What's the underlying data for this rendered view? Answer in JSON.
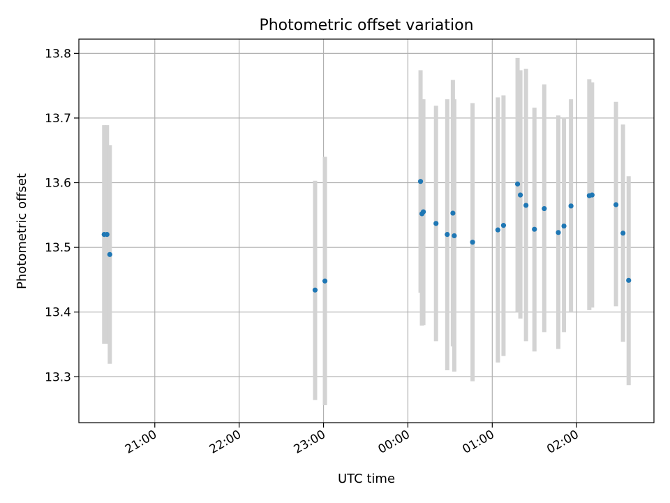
{
  "chart_data": {
    "type": "scatter",
    "title": "Photometric offset variation",
    "xlabel": "UTC time",
    "ylabel": "Photometric offset",
    "x_axis_type": "time",
    "x_tick_labels": [
      "21:00",
      "22:00",
      "23:00",
      "00:00",
      "01:00",
      "02:00"
    ],
    "y_tick_labels": [
      "13.3",
      "13.4",
      "13.5",
      "13.6",
      "13.7",
      "13.8"
    ],
    "xlim": [
      "20:06",
      "02:55"
    ],
    "ylim": [
      13.229,
      13.822
    ],
    "grid": true,
    "point_color": "#1f77b4",
    "errorbar_color": "#d3d3d3",
    "series": [
      {
        "points": [
          {
            "time": "20:24",
            "y": 13.52,
            "y_low": 13.351,
            "y_high": 13.689
          },
          {
            "time": "20:26",
            "y": 13.52,
            "y_low": 13.351,
            "y_high": 13.689
          },
          {
            "time": "20:28",
            "y": 13.489,
            "y_low": 13.32,
            "y_high": 13.658
          },
          {
            "time": "22:54",
            "y": 13.434,
            "y_low": 13.264,
            "y_high": 13.603
          },
          {
            "time": "23:01",
            "y": 13.448,
            "y_low": 13.256,
            "y_high": 13.64
          },
          {
            "time": "00:09",
            "y": 13.602,
            "y_low": 13.43,
            "y_high": 13.774
          },
          {
            "time": "00:10",
            "y": 13.552,
            "y_low": 13.379,
            "y_high": 13.729
          },
          {
            "time": "00:11",
            "y": 13.555,
            "y_low": 13.38,
            "y_high": 13.729
          },
          {
            "time": "00:20",
            "y": 13.537,
            "y_low": 13.355,
            "y_high": 13.719
          },
          {
            "time": "00:28",
            "y": 13.52,
            "y_low": 13.31,
            "y_high": 13.729
          },
          {
            "time": "00:32",
            "y": 13.553,
            "y_low": 13.347,
            "y_high": 13.759
          },
          {
            "time": "00:33",
            "y": 13.518,
            "y_low": 13.308,
            "y_high": 13.729
          },
          {
            "time": "00:46",
            "y": 13.508,
            "y_low": 13.293,
            "y_high": 13.723
          },
          {
            "time": "01:04",
            "y": 13.527,
            "y_low": 13.322,
            "y_high": 13.732
          },
          {
            "time": "01:08",
            "y": 13.534,
            "y_low": 13.332,
            "y_high": 13.735
          },
          {
            "time": "01:18",
            "y": 13.598,
            "y_low": 13.4,
            "y_high": 13.793
          },
          {
            "time": "01:20",
            "y": 13.581,
            "y_low": 13.39,
            "y_high": 13.774
          },
          {
            "time": "01:24",
            "y": 13.565,
            "y_low": 13.355,
            "y_high": 13.776
          },
          {
            "time": "01:30",
            "y": 13.528,
            "y_low": 13.339,
            "y_high": 13.716
          },
          {
            "time": "01:37",
            "y": 13.56,
            "y_low": 13.369,
            "y_high": 13.752
          },
          {
            "time": "01:47",
            "y": 13.523,
            "y_low": 13.343,
            "y_high": 13.704
          },
          {
            "time": "01:51",
            "y": 13.533,
            "y_low": 13.369,
            "y_high": 13.701
          },
          {
            "time": "01:56",
            "y": 13.564,
            "y_low": 13.401,
            "y_high": 13.729
          },
          {
            "time": "02:09",
            "y": 13.58,
            "y_low": 13.403,
            "y_high": 13.76
          },
          {
            "time": "02:11",
            "y": 13.581,
            "y_low": 13.407,
            "y_high": 13.755
          },
          {
            "time": "02:28",
            "y": 13.566,
            "y_low": 13.409,
            "y_high": 13.725
          },
          {
            "time": "02:33",
            "y": 13.522,
            "y_low": 13.354,
            "y_high": 13.69
          },
          {
            "time": "02:37",
            "y": 13.449,
            "y_low": 13.287,
            "y_high": 13.61
          }
        ]
      }
    ]
  }
}
